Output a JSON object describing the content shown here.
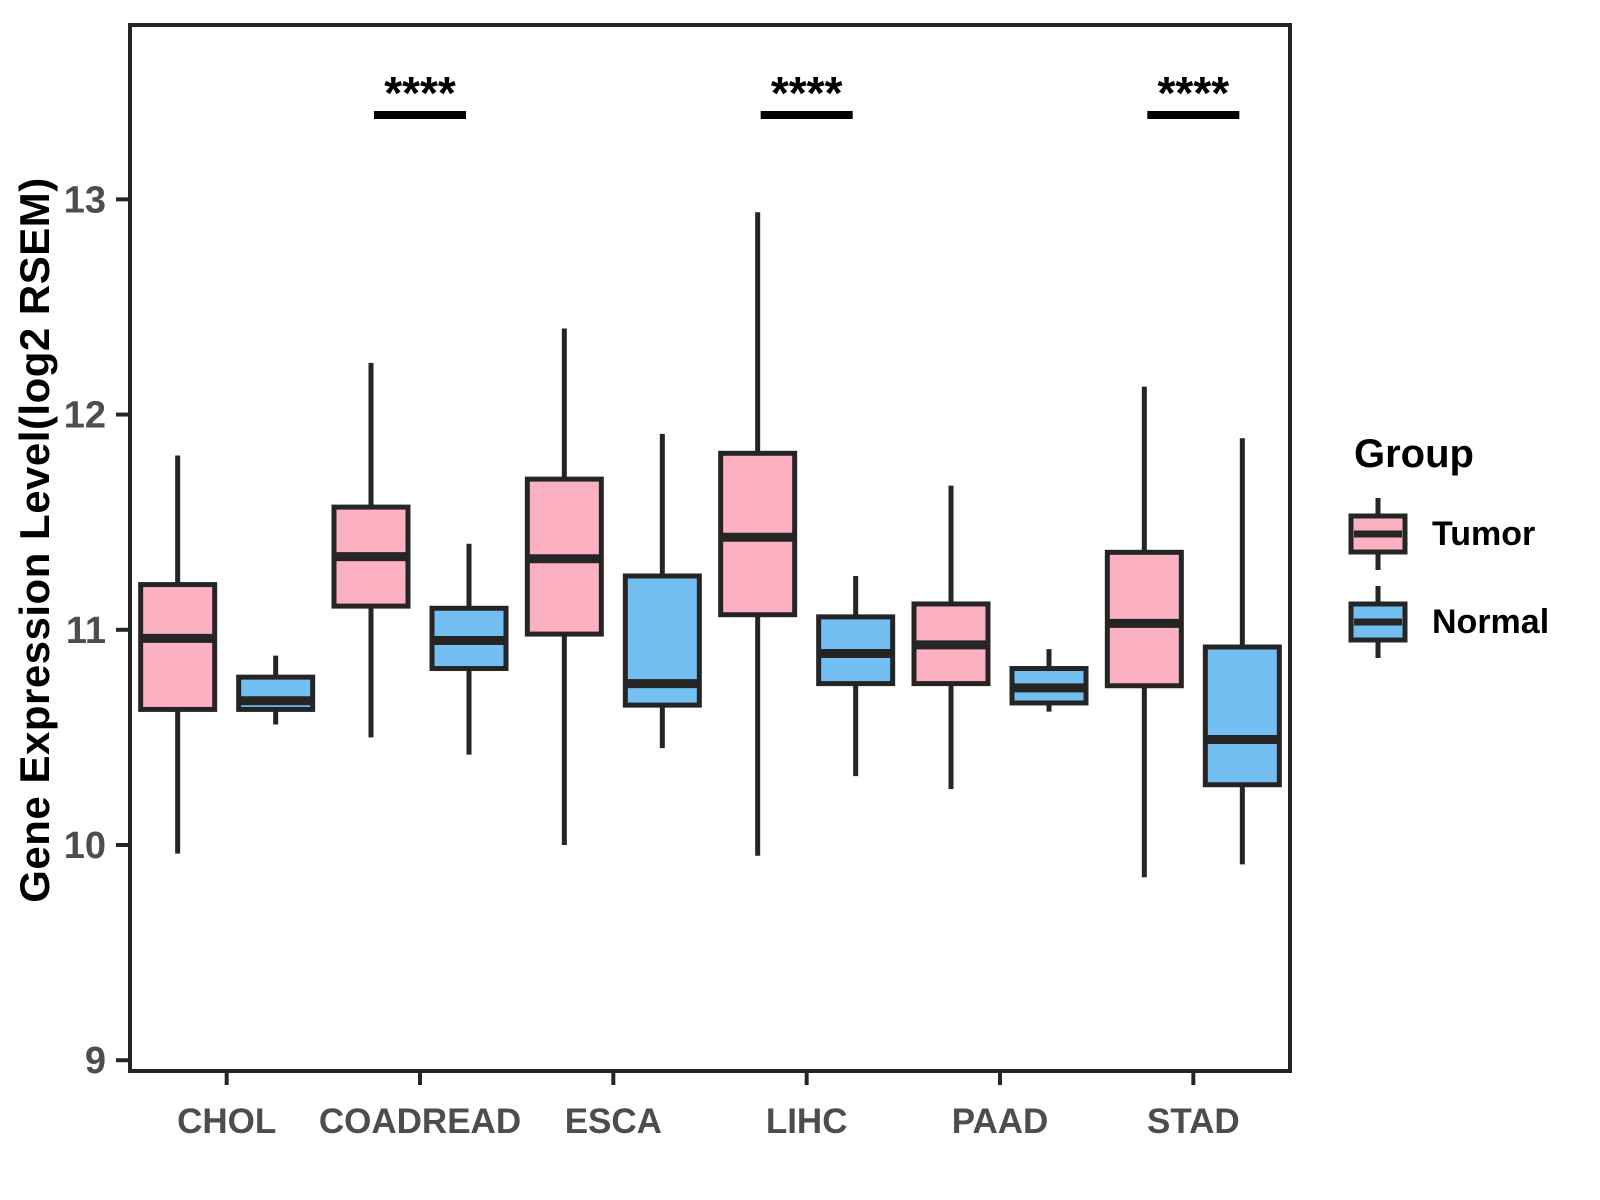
{
  "y_axis_title": "Gene Expression Level(log2 RSEM)",
  "legend": {
    "title": "Group",
    "entries": [
      {
        "name": "Tumor",
        "color": "#FBB1C1"
      },
      {
        "name": "Normal",
        "color": "#73BFF2"
      }
    ]
  },
  "colors": {
    "tumor_fill": "#FBB1C1",
    "normal_fill": "#73BFF2",
    "box_border": "#252525",
    "axis_text": "#4D4D4D",
    "axis_line": "#252525",
    "annotation": "#000000"
  },
  "chart_data": {
    "type": "boxplot",
    "title": "",
    "xlabel": "",
    "ylabel": "Gene Expression Level(log2 RSEM)",
    "categories": [
      "CHOL",
      "COADREAD",
      "ESCA",
      "LIHC",
      "PAAD",
      "STAD"
    ],
    "yticks": [
      9,
      10,
      11,
      12,
      13
    ],
    "ylim": [
      8.95,
      13.81
    ],
    "grid": false,
    "legend_position": "right",
    "series": [
      {
        "name": "Tumor",
        "color": "#FBB1C1",
        "boxes": [
          {
            "category": "CHOL",
            "low": 9.96,
            "q1": 10.63,
            "median": 10.96,
            "q3": 11.21,
            "high": 11.81
          },
          {
            "category": "COADREAD",
            "low": 10.5,
            "q1": 11.11,
            "median": 11.34,
            "q3": 11.57,
            "high": 12.24
          },
          {
            "category": "ESCA",
            "low": 10.0,
            "q1": 10.98,
            "median": 11.33,
            "q3": 11.7,
            "high": 12.4
          },
          {
            "category": "LIHC",
            "low": 9.95,
            "q1": 11.07,
            "median": 11.43,
            "q3": 11.82,
            "high": 12.94
          },
          {
            "category": "PAAD",
            "low": 10.26,
            "q1": 10.75,
            "median": 10.93,
            "q3": 11.12,
            "high": 11.67
          },
          {
            "category": "STAD",
            "low": 9.85,
            "q1": 10.74,
            "median": 11.03,
            "q3": 11.36,
            "high": 12.13
          }
        ]
      },
      {
        "name": "Normal",
        "color": "#73BFF2",
        "boxes": [
          {
            "category": "CHOL",
            "low": 10.56,
            "q1": 10.63,
            "median": 10.67,
            "q3": 10.78,
            "high": 10.88
          },
          {
            "category": "COADREAD",
            "low": 10.42,
            "q1": 10.82,
            "median": 10.95,
            "q3": 11.1,
            "high": 11.4
          },
          {
            "category": "ESCA",
            "low": 10.45,
            "q1": 10.65,
            "median": 10.75,
            "q3": 11.25,
            "high": 11.91
          },
          {
            "category": "LIHC",
            "low": 10.32,
            "q1": 10.75,
            "median": 10.89,
            "q3": 11.06,
            "high": 11.25
          },
          {
            "category": "PAAD",
            "low": 10.62,
            "q1": 10.66,
            "median": 10.73,
            "q3": 10.82,
            "high": 10.91
          },
          {
            "category": "STAD",
            "low": 9.91,
            "q1": 10.28,
            "median": 10.49,
            "q3": 10.92,
            "high": 11.89
          }
        ]
      }
    ],
    "annotations": [
      {
        "category": "COADREAD",
        "label": "****"
      },
      {
        "category": "LIHC",
        "label": "****"
      },
      {
        "category": "STAD",
        "label": "****"
      }
    ]
  }
}
